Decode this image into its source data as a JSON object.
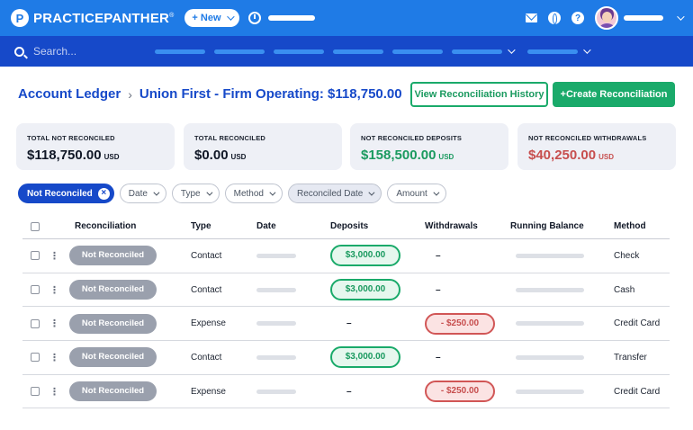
{
  "topbar": {
    "logo_mark": "P",
    "logo_text": "PRACTICEPANTHER",
    "logo_reg": "®",
    "new_label": "+ New",
    "help_glyph": "?"
  },
  "search": {
    "placeholder": "Search..."
  },
  "breadcrumb": {
    "root": "Account Ledger",
    "separator": "›",
    "current": "Union First - Firm Operating: $118,750.00"
  },
  "actions": {
    "history_label": "View Reconciliation History",
    "create_label": "+Create Reconciliation"
  },
  "summary": [
    {
      "label": "TOTAL NOT RECONCILED",
      "amount": "$118,750.00",
      "currency": "USD"
    },
    {
      "label": "TOTAL RECONCILED",
      "amount": "$0.00",
      "currency": "USD"
    },
    {
      "label": "NOT RECONCILED DEPOSITS",
      "amount": "$158,500.00",
      "currency": "USD"
    },
    {
      "label": "NOT RECONCILED WITHDRAWALS",
      "amount": "$40,250.00",
      "currency": "USD"
    }
  ],
  "filters": {
    "active": {
      "label": "Not Reconciled",
      "clear": "×"
    },
    "date": "Date",
    "type": "Type",
    "method": "Method",
    "reconciled_date": "Reconciled Date",
    "amount": "Amount"
  },
  "table": {
    "columns": [
      "Reconciliation",
      "Type",
      "Date",
      "Deposits",
      "Withdrawals",
      "Running Balance",
      "Method"
    ],
    "menu_glyph": "⋮",
    "empty_glyph": "–",
    "rows": [
      {
        "status": "Not Reconciled",
        "type": "Contact",
        "deposit": "$3,000.00",
        "withdrawal": "",
        "method": "Check"
      },
      {
        "status": "Not Reconciled",
        "type": "Contact",
        "deposit": "$3,000.00",
        "withdrawal": "",
        "method": "Cash"
      },
      {
        "status": "Not Reconciled",
        "type": "Expense",
        "deposit": "",
        "withdrawal": "- $250.00",
        "method": "Credit Card"
      },
      {
        "status": "Not Reconciled",
        "type": "Contact",
        "deposit": "$3,000.00",
        "withdrawal": "",
        "method": "Transfer"
      },
      {
        "status": "Not Reconciled",
        "type": "Expense",
        "deposit": "",
        "withdrawal": "- $250.00",
        "method": "Credit Card"
      }
    ]
  },
  "colors": {
    "primary": "#1f7be6",
    "nav": "#1649c9",
    "success": "#1aaa6a",
    "danger": "#c74e4e",
    "badge": "#9aa0ad"
  }
}
